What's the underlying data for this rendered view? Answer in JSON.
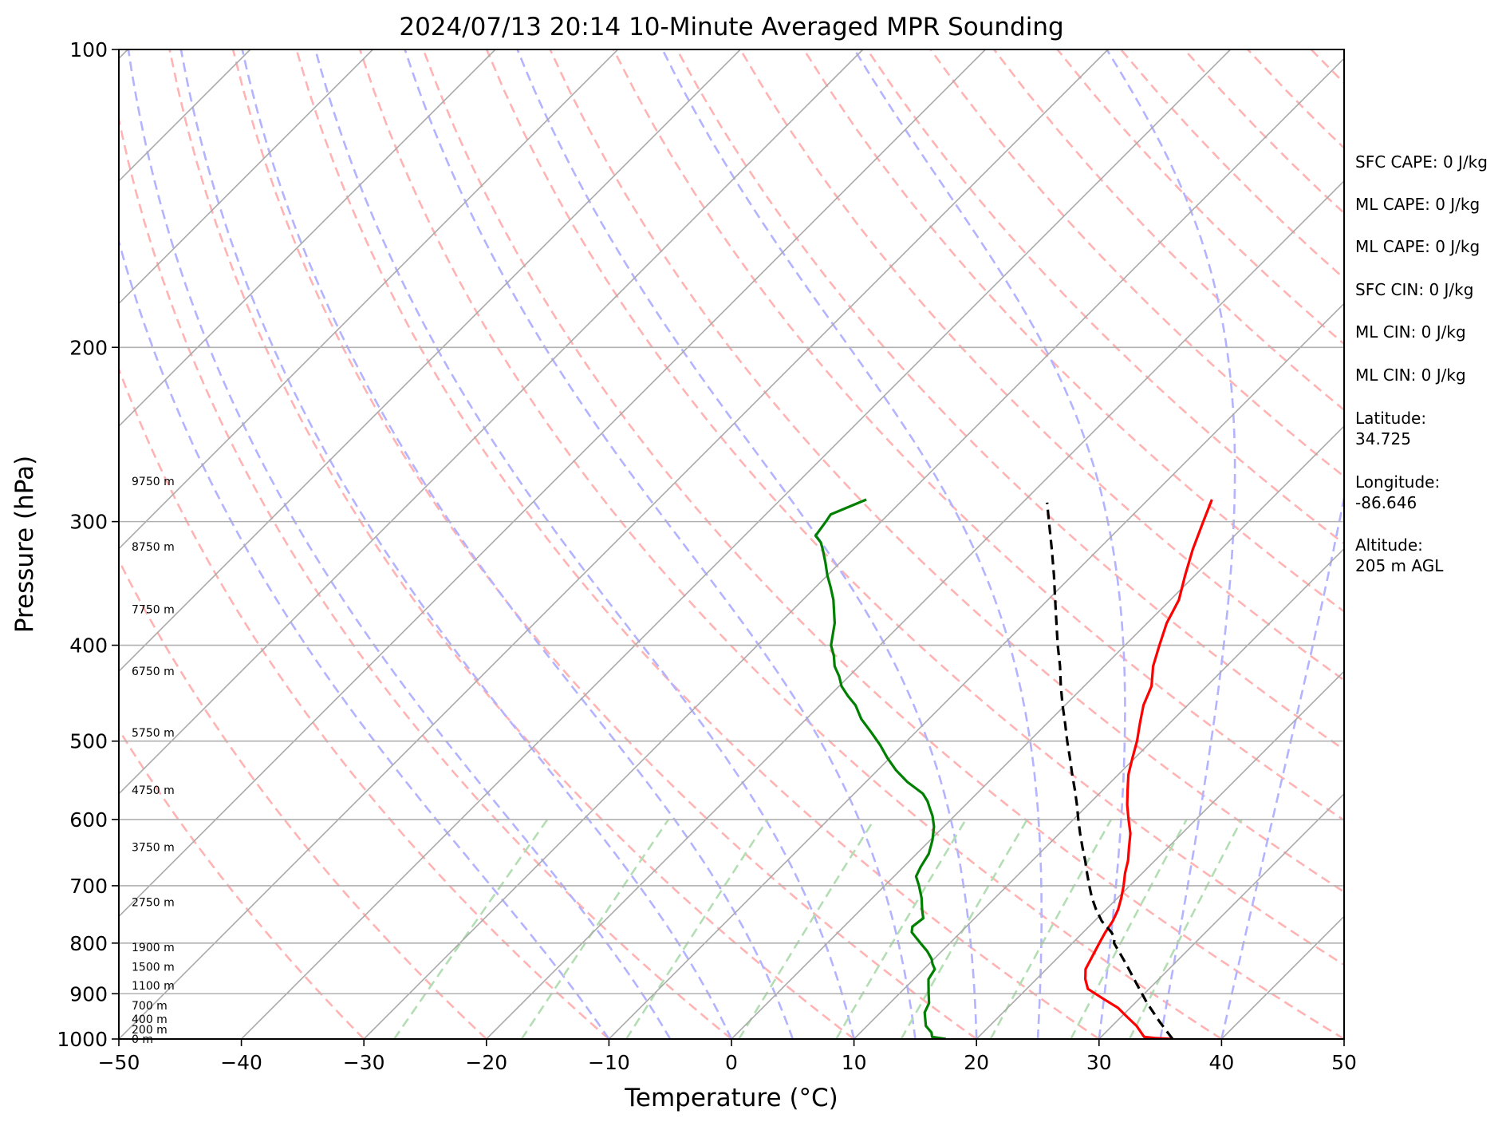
{
  "chart_data": {
    "type": "line",
    "title": "2024/07/13 20:14 10-Minute Averaged MPR Sounding",
    "xlabel": "Temperature (°C)",
    "ylabel": "Pressure (hPa)",
    "xlim": [
      -50,
      50
    ],
    "ylim": [
      1000,
      100
    ],
    "y_scale": "log",
    "x_ticks": [
      "−50",
      "−40",
      "−30",
      "−20",
      "−10",
      "0",
      "10",
      "20",
      "30",
      "40",
      "50"
    ],
    "y_ticks": [
      "100",
      "200",
      "300",
      "400",
      "500",
      "600",
      "700",
      "800",
      "900",
      "1000"
    ],
    "grid": "horizontal at pressure ticks",
    "skew_angle_deg": 45,
    "height_labels": [
      {
        "label": "0 m",
        "p": 1000
      },
      {
        "label": "200 m",
        "p": 978
      },
      {
        "label": "400 m",
        "p": 955
      },
      {
        "label": "700 m",
        "p": 925
      },
      {
        "label": "1100 m",
        "p": 883
      },
      {
        "label": "1500 m",
        "p": 845
      },
      {
        "label": "1900 m",
        "p": 808
      },
      {
        "label": "2750 m",
        "p": 727
      },
      {
        "label": "3750 m",
        "p": 640
      },
      {
        "label": "4750 m",
        "p": 560
      },
      {
        "label": "5750 m",
        "p": 490
      },
      {
        "label": "6750 m",
        "p": 425
      },
      {
        "label": "7750 m",
        "p": 368
      },
      {
        "label": "8750 m",
        "p": 318
      },
      {
        "label": "9750 m",
        "p": 273
      }
    ],
    "series": [
      {
        "key": "temperature",
        "color": "#ff0000",
        "points": [
          [
            1000,
            36.0
          ],
          [
            998,
            34.5
          ],
          [
            995,
            33.5
          ],
          [
            970,
            32.0
          ],
          [
            950,
            30.5
          ],
          [
            930,
            29.0
          ],
          [
            910,
            27.0
          ],
          [
            890,
            25.0
          ],
          [
            870,
            24.0
          ],
          [
            850,
            23.2
          ],
          [
            830,
            22.8
          ],
          [
            800,
            22.2
          ],
          [
            780,
            21.8
          ],
          [
            760,
            21.5
          ],
          [
            740,
            21.0
          ],
          [
            720,
            20.3
          ],
          [
            700,
            19.5
          ],
          [
            680,
            18.6
          ],
          [
            660,
            17.8
          ],
          [
            640,
            16.8
          ],
          [
            620,
            15.8
          ],
          [
            600,
            14.5
          ],
          [
            580,
            13.2
          ],
          [
            560,
            12.0
          ],
          [
            540,
            10.8
          ],
          [
            520,
            9.8
          ],
          [
            500,
            8.8
          ],
          [
            480,
            7.6
          ],
          [
            460,
            6.4
          ],
          [
            440,
            5.5
          ],
          [
            420,
            4.0
          ],
          [
            400,
            2.8
          ],
          [
            380,
            1.6
          ],
          [
            360,
            0.7
          ],
          [
            340,
            -0.8
          ],
          [
            320,
            -2.3
          ],
          [
            300,
            -3.7
          ],
          [
            285,
            -4.8
          ]
        ]
      },
      {
        "key": "dewpoint",
        "color": "#008000",
        "points": [
          [
            1000,
            17.5
          ],
          [
            995,
            16.2
          ],
          [
            985,
            15.8
          ],
          [
            970,
            14.8
          ],
          [
            960,
            14.4
          ],
          [
            940,
            13.6
          ],
          [
            920,
            13.2
          ],
          [
            900,
            12.4
          ],
          [
            880,
            11.6
          ],
          [
            870,
            11.2
          ],
          [
            850,
            10.9
          ],
          [
            840,
            10.3
          ],
          [
            830,
            9.8
          ],
          [
            815,
            8.8
          ],
          [
            800,
            7.6
          ],
          [
            780,
            6.0
          ],
          [
            770,
            5.6
          ],
          [
            755,
            5.8
          ],
          [
            740,
            5.0
          ],
          [
            720,
            4.0
          ],
          [
            700,
            2.8
          ],
          [
            685,
            1.8
          ],
          [
            670,
            1.4
          ],
          [
            650,
            1.0
          ],
          [
            630,
            0.2
          ],
          [
            610,
            -0.8
          ],
          [
            595,
            -1.8
          ],
          [
            585,
            -2.6
          ],
          [
            575,
            -3.4
          ],
          [
            565,
            -4.4
          ],
          [
            550,
            -6.6
          ],
          [
            535,
            -8.5
          ],
          [
            520,
            -10.2
          ],
          [
            505,
            -11.8
          ],
          [
            490,
            -13.6
          ],
          [
            475,
            -15.5
          ],
          [
            460,
            -17.1
          ],
          [
            450,
            -18.5
          ],
          [
            440,
            -19.8
          ],
          [
            430,
            -20.8
          ],
          [
            420,
            -22.0
          ],
          [
            410,
            -22.9
          ],
          [
            400,
            -24.0
          ],
          [
            380,
            -25.5
          ],
          [
            360,
            -27.5
          ],
          [
            350,
            -28.7
          ],
          [
            340,
            -30.0
          ],
          [
            330,
            -31.2
          ],
          [
            320,
            -32.5
          ],
          [
            315,
            -33.2
          ],
          [
            310,
            -34.2
          ],
          [
            300,
            -34.5
          ],
          [
            295,
            -34.7
          ],
          [
            285,
            -33.0
          ]
        ]
      },
      {
        "key": "parcel",
        "color": "#000000",
        "dashed": true,
        "points": [
          [
            1000,
            36.0
          ],
          [
            960,
            33.5
          ],
          [
            920,
            31.0
          ],
          [
            880,
            28.6
          ],
          [
            840,
            26.1
          ],
          [
            800,
            23.4
          ],
          [
            790,
            23.0
          ],
          [
            780,
            22.3
          ],
          [
            760,
            20.6
          ],
          [
            740,
            19.2
          ],
          [
            720,
            17.9
          ],
          [
            700,
            16.7
          ],
          [
            680,
            15.5
          ],
          [
            660,
            14.3
          ],
          [
            640,
            13.0
          ],
          [
            620,
            11.7
          ],
          [
            600,
            10.4
          ],
          [
            580,
            9.1
          ],
          [
            560,
            7.7
          ],
          [
            540,
            6.2
          ],
          [
            520,
            4.7
          ],
          [
            500,
            3.1
          ],
          [
            480,
            1.5
          ],
          [
            460,
            -0.2
          ],
          [
            440,
            -1.9
          ],
          [
            420,
            -3.6
          ],
          [
            400,
            -5.5
          ],
          [
            380,
            -7.4
          ],
          [
            360,
            -9.4
          ],
          [
            340,
            -11.5
          ],
          [
            320,
            -13.8
          ],
          [
            300,
            -16.3
          ],
          [
            287,
            -18.0
          ]
        ]
      }
    ],
    "annotations": [
      "SFC CAPE: 0 J/kg",
      "ML CAPE: 0 J/kg",
      "ML CAPE: 0 J/kg",
      "SFC CIN: 0 J/kg",
      "ML CIN: 0 J/kg",
      "ML CIN: 0 J/kg",
      "Latitude:",
      "34.725",
      "Longitude:",
      "-86.646",
      "Altitude:",
      "205 m AGL"
    ],
    "colors": {
      "isotherm": "#aaaaaa",
      "dry_adiabat": "#ffb3b3",
      "moist_adiabat": "#b3b3ff",
      "mixing_ratio": "#b3deb3",
      "temperature": "#ff0000",
      "dewpoint": "#008000",
      "parcel": "#000000"
    }
  }
}
